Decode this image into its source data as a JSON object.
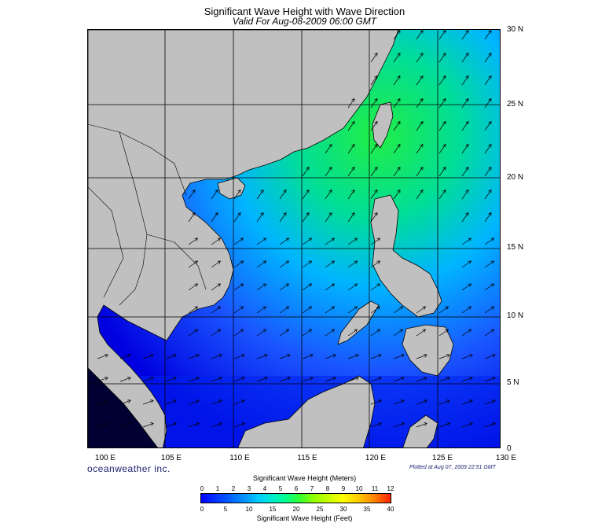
{
  "header": {
    "title": "Significant Wave Height with Wave Direction",
    "subtitle": "Valid For Aug-08-2009 06:00 GMT"
  },
  "map": {
    "lat_labels": [
      "30 N",
      "25 N",
      "20 N",
      "15 N",
      "10 N",
      "5 N",
      "0"
    ],
    "lon_labels": [
      "100 E",
      "105 E",
      "110 E",
      "115 E",
      "120 E",
      "125 E",
      "130 E"
    ],
    "land_color": "#c0c0c0",
    "sea_color_low": "#0000ff",
    "sea_color_high": "#00ff00"
  },
  "footer": {
    "brand": "oceanweather inc.",
    "plotted": "Plotted at Aug 07, 2009 22:51 GMT"
  },
  "legend": {
    "meters_title": "Significant Wave Height (Meters)",
    "feet_title": "Significant Wave Height (Feet)",
    "meters_ticks": [
      "0",
      "1",
      "2",
      "3",
      "4",
      "5",
      "6",
      "7",
      "8",
      "9",
      "10",
      "11",
      "12"
    ],
    "feet_ticks": [
      "0",
      "5",
      "10",
      "15",
      "20",
      "25",
      "30",
      "35",
      "40"
    ]
  }
}
